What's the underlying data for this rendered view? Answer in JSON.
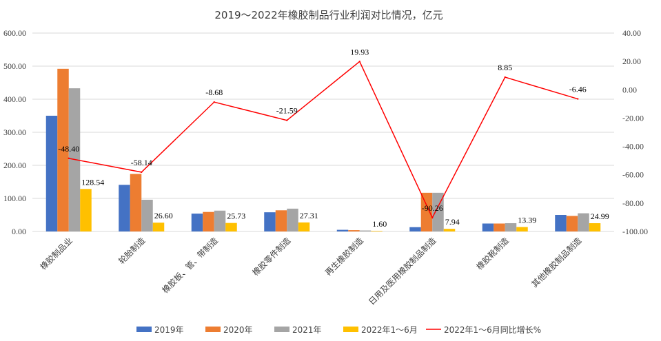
{
  "chart_data": {
    "type": "bar",
    "title": "2019～2022年橡胶制品行业利润对比情况，亿元",
    "categories": [
      "橡胶制品业",
      "轮胎制造",
      "橡胶板、管、带制造",
      "橡胶零件制造",
      "再生橡胶制造",
      "日用及医用橡胶制品制造",
      "橡胶靴制造",
      "其他橡胶制品制造"
    ],
    "series": [
      {
        "name": "2019年",
        "type": "bar",
        "axis": "left",
        "color": "#4472C4",
        "values": [
          350,
          141,
          54,
          58,
          5,
          13,
          24,
          50
        ]
      },
      {
        "name": "2020年",
        "type": "bar",
        "axis": "left",
        "color": "#ED7D31",
        "values": [
          492,
          174,
          59,
          64,
          4,
          117,
          24,
          47
        ]
      },
      {
        "name": "2021年",
        "type": "bar",
        "axis": "left",
        "color": "#A5A5A5",
        "values": [
          433,
          96,
          63,
          69,
          3,
          117,
          25,
          55
        ]
      },
      {
        "name": "2022年1～6月",
        "type": "bar",
        "axis": "left",
        "color": "#FFC000",
        "values": [
          128.54,
          26.6,
          25.73,
          27.31,
          1.6,
          7.94,
          13.39,
          24.99
        ],
        "labels": [
          "128.54",
          "26.60",
          "25.73",
          "27.31",
          "1.60",
          "7.94",
          "13.39",
          "24.99"
        ]
      },
      {
        "name": "2022年1～6月同比增长%",
        "type": "line",
        "axis": "right",
        "color": "#FF0000",
        "values": [
          -48.4,
          -58.14,
          -8.68,
          -21.59,
          19.93,
          -90.26,
          8.85,
          -6.46
        ],
        "labels": [
          "-48.40",
          "-58.14",
          "-8.68",
          "-21.59",
          "19.93",
          "-90.26",
          "8.85",
          "-6.46"
        ]
      }
    ],
    "y_left": {
      "min": 0,
      "max": 600,
      "step": 100,
      "ticks": [
        "0.00",
        "100.00",
        "200.00",
        "300.00",
        "400.00",
        "500.00",
        "600.00"
      ]
    },
    "y_right": {
      "min": -100,
      "max": 40,
      "step": 20,
      "ticks": [
        "-100.00",
        "-80.00",
        "-60.00",
        "-40.00",
        "-20.00",
        "0.00",
        "20.00",
        "40.00"
      ]
    },
    "grid": true,
    "legend_position": "bottom"
  }
}
